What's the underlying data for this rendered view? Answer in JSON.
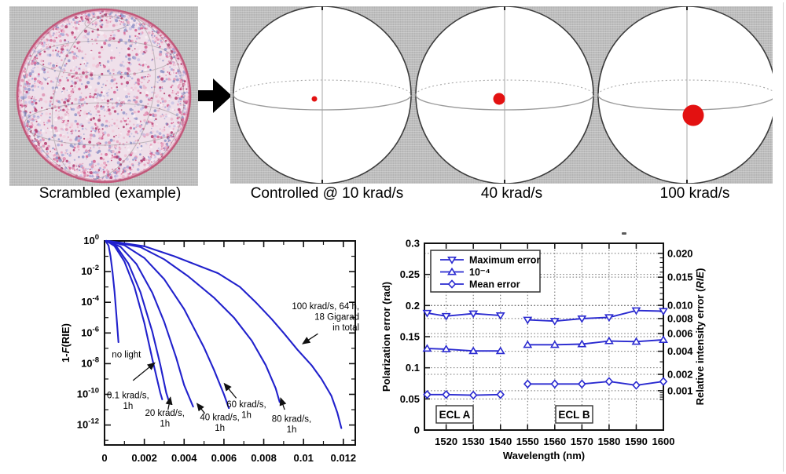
{
  "colors": {
    "panel_gray": "#bdbdbd",
    "curve_blue": "#2121cc",
    "series_blue": "#2a2ad0",
    "dot_red": "#e31111",
    "axis_black": "#111111"
  },
  "top_row": {
    "scrambled": {
      "caption": "Scrambled (example)",
      "speckle_palette": [
        "#f2d0de",
        "#e9b6cc",
        "#dd8fb0",
        "#c9c2e4",
        "#aaa8d6",
        "#d45f90",
        "#b43b6e",
        "#f8eef4",
        "#8f93c7",
        "#e7a0be"
      ]
    },
    "arrow_icon": "right-arrow",
    "controlled": {
      "dot_color": "#e31111",
      "spheres": [
        {
          "caption": "Controlled @ 10 krad/s",
          "dot_radius": 3.5,
          "dot_dx": -10,
          "dot_dy": 5
        },
        {
          "caption": "40 krad/s",
          "dot_radius": 7.5,
          "dot_dx": -7,
          "dot_dy": 5
        },
        {
          "caption": "100 krad/s",
          "dot_radius": 13.5,
          "dot_dx": 8,
          "dot_dy": 26
        }
      ]
    }
  },
  "chart_data": [
    {
      "type": "line",
      "title": "",
      "xlabel": "",
      "ylabel": "1-F(RIE)",
      "ylabel_parts": [
        {
          "t": "1-"
        },
        {
          "t": "F",
          "italic": true
        },
        {
          "t": "(RIE)"
        }
      ],
      "xlim": [
        0,
        0.0126
      ],
      "e_lim": [
        0,
        -13.3
      ],
      "x_ticks": [
        0,
        0.002,
        0.004,
        0.006,
        0.008,
        0.01,
        0.012
      ],
      "x_minor_ticks": [
        0.001,
        0.003,
        0.005,
        0.007,
        0.009,
        0.011
      ],
      "y_tick_exponents": [
        0,
        -2,
        -4,
        -6,
        -8,
        -10,
        -12
      ],
      "y_minor_exponents": [
        -1,
        -3,
        -5,
        -7,
        -9,
        -11,
        -13
      ],
      "line_color": "#2121cc",
      "series": [
        {
          "name": "no light",
          "points": [
            [
              5e-05,
              0
            ],
            [
              0.0002,
              -0.3
            ],
            [
              0.0003,
              -1.0
            ],
            [
              0.0004,
              -2.0
            ],
            [
              0.0005,
              -3.3
            ],
            [
              0.0006,
              -4.9
            ],
            [
              0.0007,
              -6.6
            ]
          ]
        },
        {
          "name": "0.1 krad/s, 1h",
          "points": [
            [
              0.0001,
              0
            ],
            [
              0.0005,
              -0.33
            ],
            [
              0.001,
              -1.34
            ],
            [
              0.0015,
              -3.0
            ],
            [
              0.002,
              -5.34
            ],
            [
              0.0024,
              -7.7
            ],
            [
              0.0028,
              -9.9
            ],
            [
              0.0029,
              -10.33
            ]
          ]
        },
        {
          "name": "20 krad/s, 1h",
          "points": [
            [
              0.0001,
              0
            ],
            [
              0.0006,
              -0.37
            ],
            [
              0.0012,
              -1.48
            ],
            [
              0.0018,
              -3.33
            ],
            [
              0.0024,
              -5.92
            ],
            [
              0.0028,
              -8.06
            ],
            [
              0.0031,
              -9.9
            ],
            [
              0.00327,
              -10.6
            ]
          ]
        },
        {
          "name": "40 krad/s, 1h",
          "points": [
            [
              0.0001,
              0
            ],
            [
              0.0008,
              -0.38
            ],
            [
              0.0016,
              -1.5
            ],
            [
              0.0024,
              -3.38
            ],
            [
              0.003,
              -5.29
            ],
            [
              0.0036,
              -7.6
            ],
            [
              0.004,
              -9.4
            ],
            [
              0.00445,
              -10.8
            ]
          ]
        },
        {
          "name": "60 krad/s, 1h",
          "points": [
            [
              0.0001,
              0
            ],
            [
              0.001,
              -0.28
            ],
            [
              0.002,
              -1.11
            ],
            [
              0.003,
              -2.5
            ],
            [
              0.004,
              -4.45
            ],
            [
              0.005,
              -6.95
            ],
            [
              0.0055,
              -8.4
            ],
            [
              0.006,
              -10.0
            ],
            [
              0.00625,
              -10.9
            ]
          ]
        },
        {
          "name": "80 krad/s, 1h",
          "points": [
            [
              0.0002,
              0
            ],
            [
              0.0018,
              -0.4
            ],
            [
              0.003,
              -1.2
            ],
            [
              0.0042,
              -2.3
            ],
            [
              0.0055,
              -3.7
            ],
            [
              0.0065,
              -5.0
            ],
            [
              0.0074,
              -6.5
            ],
            [
              0.0081,
              -8.1
            ],
            [
              0.0086,
              -9.6
            ],
            [
              0.0088,
              -10.5
            ]
          ]
        },
        {
          "name": "100 krad/s, 64 h",
          "points": [
            [
              0.0002,
              0
            ],
            [
              0.002,
              -0.35
            ],
            [
              0.0035,
              -1.0
            ],
            [
              0.0057,
              -2.1
            ],
            [
              0.0068,
              -3.0
            ],
            [
              0.0076,
              -4.0
            ],
            [
              0.0084,
              -5.1
            ],
            [
              0.009,
              -6.0
            ],
            [
              0.0097,
              -7.1
            ],
            [
              0.0104,
              -8.1
            ],
            [
              0.0109,
              -9.0
            ],
            [
              0.0114,
              -10.1
            ],
            [
              0.0117,
              -11.2
            ],
            [
              0.0119,
              -12.2
            ]
          ]
        }
      ],
      "annotations": [
        {
          "lines": [
            "no light"
          ],
          "x": 0.0011,
          "e": -7.6,
          "align": "middle"
        },
        {
          "lines": [
            "0.1 krad/s,",
            "1h"
          ],
          "x": 0.00118,
          "e": -10.25,
          "align": "middle",
          "arrow": {
            "x1": 0.00143,
            "e1": -9.1,
            "x2": 0.00252,
            "e2": -7.95
          }
        },
        {
          "lines": [
            "20 krad/s,",
            "1h"
          ],
          "x": 0.00303,
          "e": -11.4,
          "align": "middle",
          "arrow": {
            "x1": 0.00319,
            "e1": -11.0,
            "x2": 0.00331,
            "e2": -10.2
          }
        },
        {
          "lines": [
            "40 krad/s,",
            "1h"
          ],
          "x": 0.00579,
          "e": -11.7,
          "align": "middle",
          "arrow": {
            "x1": 0.00504,
            "e1": -11.25,
            "x2": 0.00465,
            "e2": -10.6
          }
        },
        {
          "lines": [
            "60 krad/s,",
            "1h"
          ],
          "x": 0.00713,
          "e": -10.84,
          "align": "middle",
          "arrow": {
            "x1": 0.00662,
            "e1": -10.25,
            "x2": 0.00602,
            "e2": -9.3
          }
        },
        {
          "lines": [
            "80 krad/s,",
            "1h"
          ],
          "x": 0.0094,
          "e": -11.8,
          "align": "middle",
          "arrow": {
            "x1": 0.00905,
            "e1": -11.0,
            "x2": 0.00885,
            "e2": -10.25
          }
        },
        {
          "lines": [
            "100 krad/s, 64 h,",
            "18 Gigarad",
            "in total"
          ],
          "x": 0.0128,
          "e": -4.45,
          "align": "end",
          "arrow": {
            "x1": 0.01072,
            "e1": -6.05,
            "x2": 0.00996,
            "e2": -6.7
          }
        }
      ]
    },
    {
      "type": "line",
      "xlabel": "Wavelength (nm)",
      "ylabel_left": "Polarization error (rad)",
      "ylabel_right": "Relative intensity error (RIE)",
      "ylabel_right_parts": [
        {
          "t": "Relative intensity error ("
        },
        {
          "t": "RIE",
          "italic": true
        },
        {
          "t": ")"
        }
      ],
      "xlim": [
        1512,
        1600
      ],
      "ylim_left": [
        0,
        0.3
      ],
      "x_ticks": [
        1520,
        1530,
        1540,
        1550,
        1560,
        1570,
        1580,
        1590,
        1600
      ],
      "y_ticks_left": [
        0,
        0.05,
        0.1,
        0.15,
        0.2,
        0.25,
        0.3
      ],
      "y_ticks_left_labels": [
        "0",
        "0.05",
        "0.1",
        "0.15",
        "0.2",
        "0.25",
        "0.3"
      ],
      "y_ticks_right": [
        0.001,
        0.002,
        0.004,
        0.006,
        0.008,
        0.01,
        0.015,
        0.02
      ],
      "y_ticks_right_labels": [
        "0.001",
        "0.002",
        "0.004",
        "0.006",
        "0.008",
        "0.010",
        "0.015",
        "0.020"
      ],
      "y_minor_ticks_right": [
        0.0006,
        0.0007,
        0.0008,
        0.0009,
        0.0015,
        0.003,
        0.005,
        0.007,
        0.009,
        0.011,
        0.012,
        0.013,
        0.014,
        0.016,
        0.017,
        0.018,
        0.019
      ],
      "line_color": "#2a2ad0",
      "legend": [
        {
          "label": "Maximum error",
          "marker": "triangle-down"
        },
        {
          "label": "10⁻⁴",
          "marker": "triangle-up"
        },
        {
          "label": "Mean error",
          "marker": "diamond"
        }
      ],
      "group_labels": [
        {
          "text": "ECL A"
        },
        {
          "text": "ECL B"
        }
      ],
      "series": [
        {
          "name": "Maximum error",
          "marker": "triangle-down",
          "segments": [
            {
              "x": [
                1513,
                1520,
                1530,
                1540
              ],
              "y": [
                0.188,
                0.183,
                0.187,
                0.184
              ]
            },
            {
              "x": [
                1550,
                1560,
                1570,
                1580,
                1590,
                1600
              ],
              "y": [
                0.177,
                0.175,
                0.179,
                0.181,
                0.192,
                0.191
              ]
            }
          ]
        },
        {
          "name": "10⁻⁴",
          "marker": "triangle-up",
          "segments": [
            {
              "x": [
                1513,
                1520,
                1530,
                1540
              ],
              "y": [
                0.131,
                0.13,
                0.127,
                0.127
              ]
            },
            {
              "x": [
                1550,
                1560,
                1570,
                1580,
                1590,
                1600
              ],
              "y": [
                0.137,
                0.137,
                0.138,
                0.143,
                0.142,
                0.145
              ]
            }
          ]
        },
        {
          "name": "Mean error",
          "marker": "diamond",
          "segments": [
            {
              "x": [
                1513,
                1520,
                1530,
                1540
              ],
              "y": [
                0.057,
                0.057,
                0.056,
                0.057
              ]
            },
            {
              "x": [
                1550,
                1560,
                1570,
                1580,
                1590,
                1600
              ],
              "y": [
                0.074,
                0.074,
                0.074,
                0.078,
                0.072,
                0.078
              ]
            }
          ]
        }
      ]
    }
  ]
}
